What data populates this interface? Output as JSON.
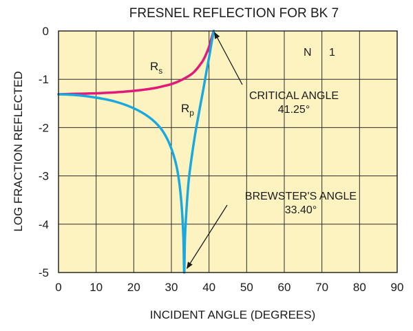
{
  "chart_data": {
    "type": "line",
    "title": "FRESNEL REFLECTION FOR BK 7",
    "xlabel": "INCIDENT ANGLE (DEGREES)",
    "ylabel": "LOG FRACTION REFLECTED",
    "xlim": [
      0,
      90
    ],
    "ylim": [
      -5,
      0
    ],
    "x_ticks": [
      0,
      10,
      20,
      30,
      40,
      50,
      60,
      70,
      80,
      90
    ],
    "y_ticks": [
      0,
      -1,
      -2,
      -3,
      -4,
      -5
    ],
    "grid": true,
    "background_color": "#fdf3c0",
    "series": [
      {
        "name": "Rs",
        "label_main": "R",
        "label_sub": "s",
        "color": "#e0197a",
        "x": [
          0,
          5,
          10,
          15,
          20,
          25,
          28,
          30,
          32,
          34,
          36,
          38,
          39,
          40,
          40.6,
          41.25
        ],
        "y": [
          -1.31,
          -1.3,
          -1.29,
          -1.27,
          -1.24,
          -1.19,
          -1.14,
          -1.1,
          -1.04,
          -0.96,
          -0.85,
          -0.66,
          -0.52,
          -0.33,
          -0.17,
          0
        ]
      },
      {
        "name": "Rp",
        "label_main": "R",
        "label_sub": "p",
        "color": "#19a9e0",
        "x": [
          0,
          5,
          10,
          15,
          20,
          24,
          27,
          29,
          30.5,
          31.5,
          32.2,
          32.8,
          33.2,
          33.4,
          33.6,
          34,
          34.6,
          35.5,
          36.5,
          37.5,
          38.5,
          39.3,
          40,
          40.6,
          41.25
        ],
        "y": [
          -1.31,
          -1.33,
          -1.38,
          -1.46,
          -1.6,
          -1.78,
          -2.0,
          -2.25,
          -2.55,
          -2.85,
          -3.2,
          -3.7,
          -4.3,
          -5.0,
          -4.3,
          -3.7,
          -3.1,
          -2.55,
          -2.05,
          -1.62,
          -1.2,
          -0.85,
          -0.55,
          -0.28,
          0
        ]
      }
    ],
    "annotations": [
      {
        "id": "critical",
        "line1": "CRITICAL ANGLE",
        "line2": "41.25°",
        "x": 41.25,
        "y": 0
      },
      {
        "id": "brewster",
        "line1": "BREWSTER'S ANGLE",
        "line2": "33.40°",
        "x": 33.4,
        "y": -5
      }
    ],
    "note": {
      "label_n": "N",
      "label_v": "1"
    }
  }
}
